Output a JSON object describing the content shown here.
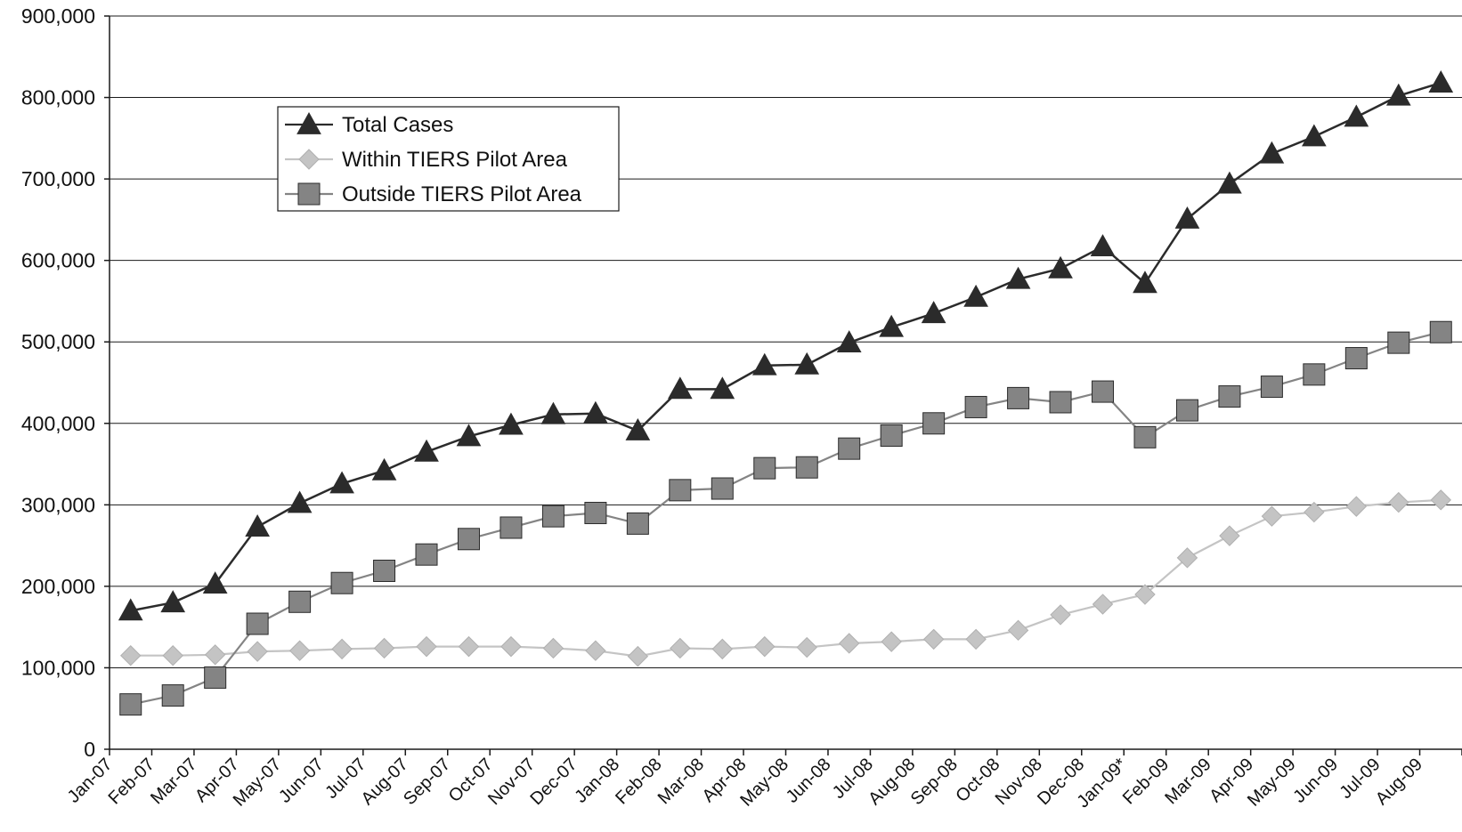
{
  "chart_data": {
    "type": "line",
    "title": "",
    "xlabel": "",
    "ylabel": "",
    "ylim": [
      0,
      900000
    ],
    "y_ticks": [
      0,
      100000,
      200000,
      300000,
      400000,
      500000,
      600000,
      700000,
      800000,
      900000
    ],
    "y_tick_labels": [
      "0",
      "100,000",
      "200,000",
      "300,000",
      "400,000",
      "500,000",
      "600,000",
      "700,000",
      "800,000",
      "900,000"
    ],
    "grid": true,
    "legend_placement": "top-left",
    "categories": [
      "Jan-07",
      "Feb-07",
      "Mar-07",
      "Apr-07",
      "May-07",
      "Jun-07",
      "Jul-07",
      "Aug-07",
      "Sep-07",
      "Oct-07",
      "Nov-07",
      "Dec-07",
      "Jan-08",
      "Feb-08",
      "Mar-08",
      "Apr-08",
      "May-08",
      "Jun-08",
      "Jul-08",
      "Aug-08",
      "Sep-08",
      "Oct-08",
      "Nov-08",
      "Dec-08",
      "Jan-09*",
      "Feb-09",
      "Mar-09",
      "Apr-09",
      "May-09",
      "Jun-09",
      "Jul-09",
      "Aug-09"
    ],
    "series": [
      {
        "name": "Total Cases",
        "color": "#2b2b2b",
        "marker": "triangle",
        "values": [
          170000,
          180000,
          203000,
          273000,
          302000,
          326000,
          342000,
          365000,
          384000,
          398000,
          411000,
          412000,
          391000,
          442000,
          442000,
          471000,
          472000,
          499000,
          518000,
          535000,
          555000,
          577000,
          590000,
          617000,
          572000,
          651000,
          694000,
          731000,
          752000,
          776000,
          802000,
          818000
        ]
      },
      {
        "name": "Within TIERS Pilot Area",
        "color": "#c4c4c4",
        "marker": "diamond",
        "values": [
          115000,
          115000,
          116000,
          120000,
          121000,
          123000,
          124000,
          126000,
          126000,
          126000,
          124000,
          121000,
          114000,
          124000,
          123000,
          126000,
          125000,
          130000,
          132000,
          135000,
          135000,
          146000,
          165000,
          178000,
          190000,
          235000,
          262000,
          286000,
          291000,
          298000,
          303000,
          306000
        ]
      },
      {
        "name": "Outside TIERS Pilot Area",
        "color": "#848484",
        "marker": "square",
        "values": [
          55000,
          66000,
          88000,
          154000,
          181000,
          204000,
          219000,
          239000,
          258000,
          272000,
          286000,
          290000,
          277000,
          318000,
          320000,
          345000,
          346000,
          369000,
          385000,
          400000,
          420000,
          431000,
          426000,
          439000,
          383000,
          416000,
          433000,
          445000,
          460000,
          480000,
          499000,
          512000
        ]
      }
    ]
  }
}
